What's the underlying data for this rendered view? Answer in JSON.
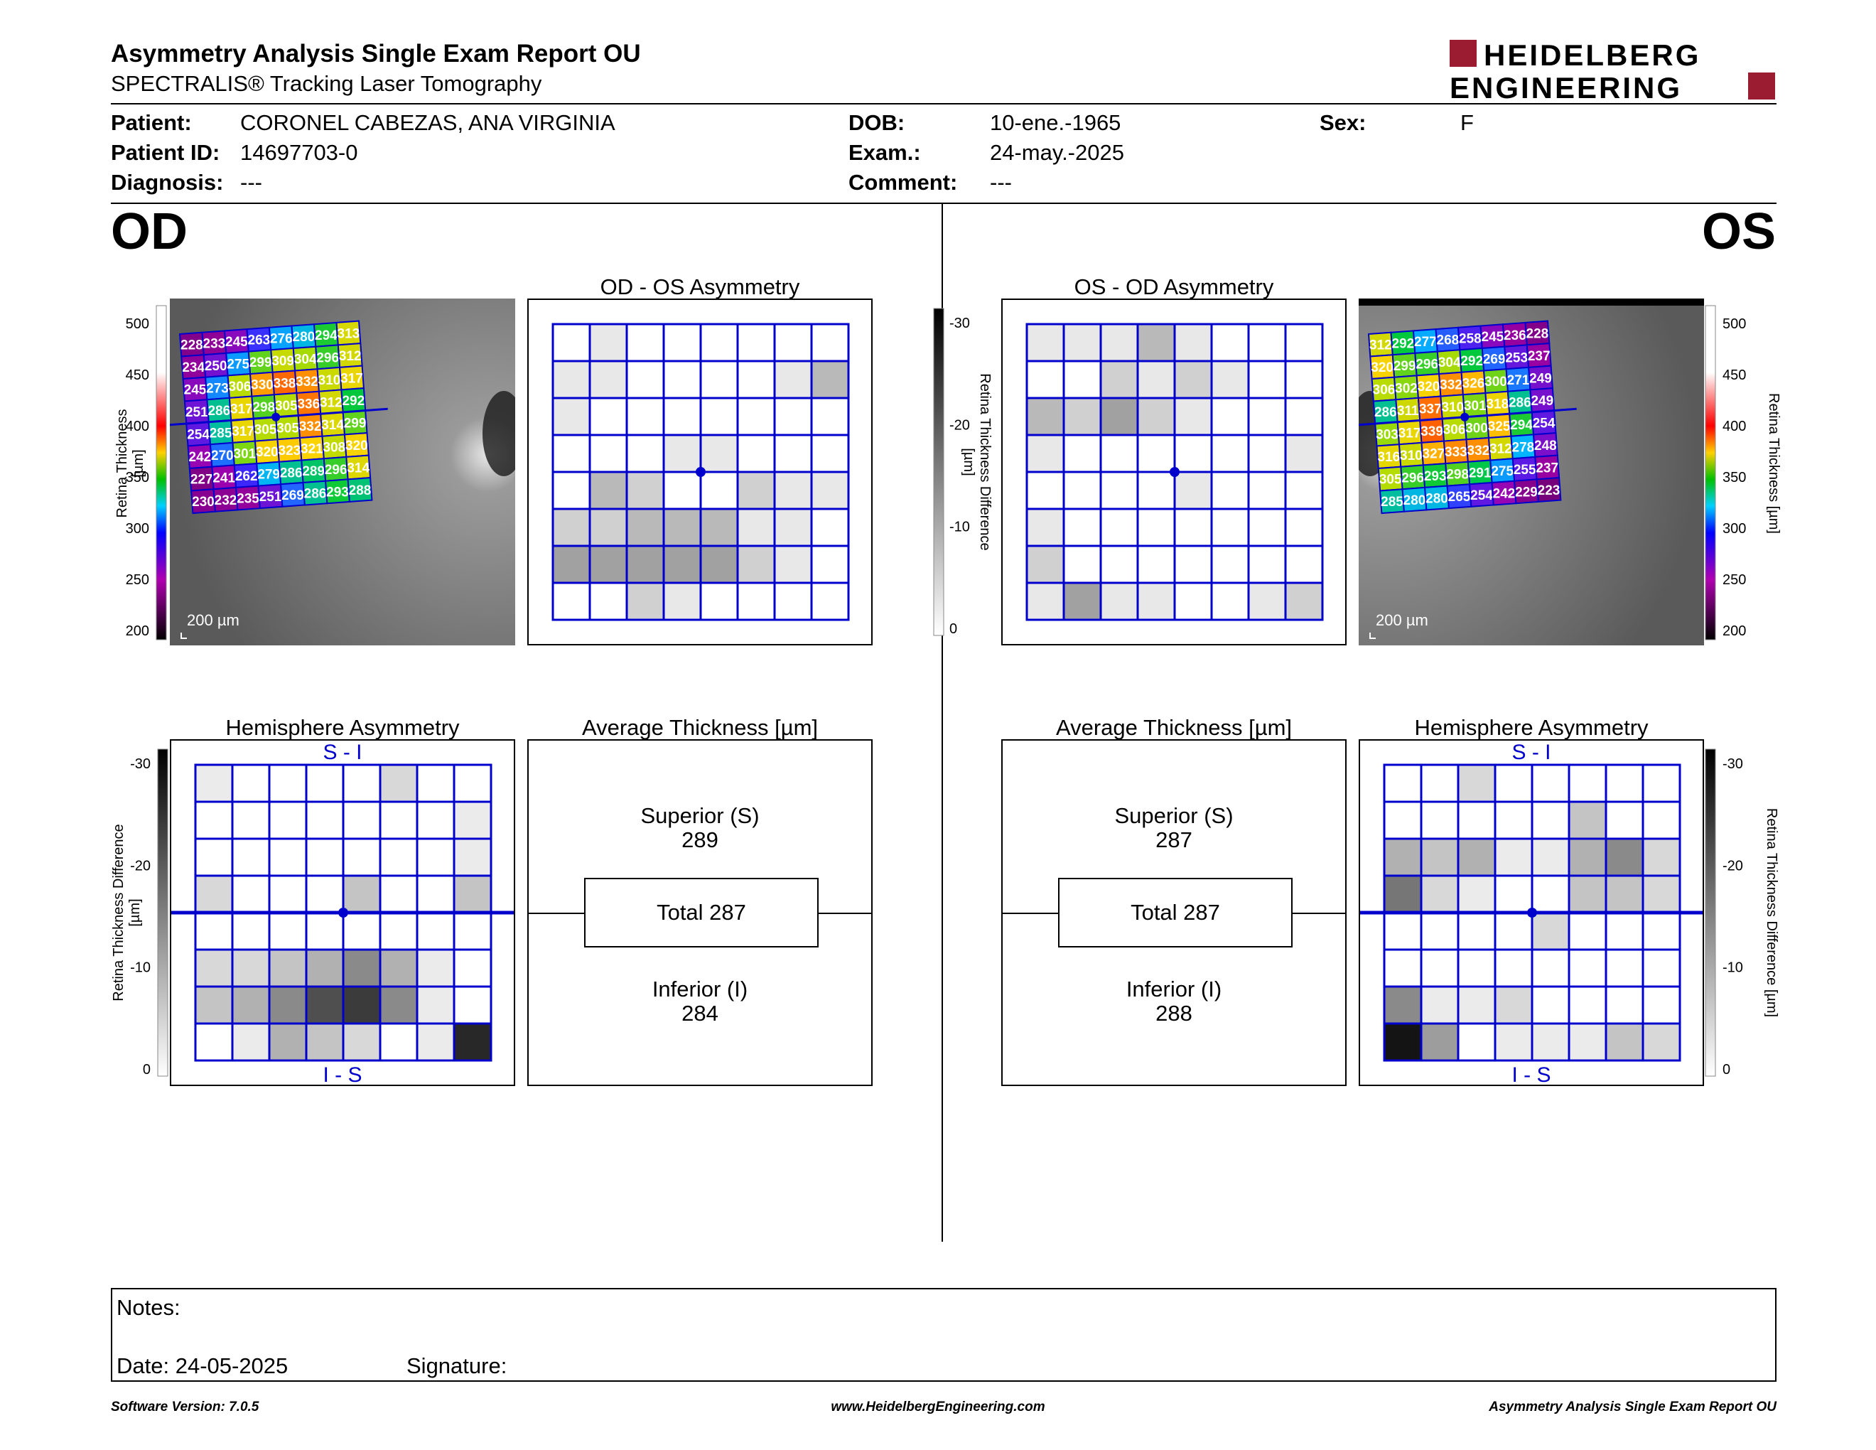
{
  "header": {
    "title": "Asymmetry Analysis Single Exam Report OU",
    "subtitle": "SPECTRALIS® Tracking Laser Tomography",
    "logo_line1": "HEIDELBERG",
    "logo_line2": "ENGINEERING",
    "brand_color": "#9b1b30"
  },
  "patient": {
    "patient_label": "Patient:",
    "patient_value": "CORONEL CABEZAS, ANA VIRGINIA",
    "id_label": "Patient ID:",
    "id_value": "14697703-0",
    "diagnosis_label": "Diagnosis:",
    "diagnosis_value": "---",
    "dob_label": "DOB:",
    "dob_value": "10-ene.-1965",
    "exam_label": "Exam.:",
    "exam_value": "24-may.-2025",
    "comment_label": "Comment:",
    "comment_value": "---",
    "sex_label": "Sex:",
    "sex_value": "F"
  },
  "od": {
    "label": "OD",
    "asym_title": "OD - OS Asymmetry",
    "hemi_title": "Hemisphere Asymmetry",
    "avg_title": "Average Thickness [µm]",
    "scale_label": "200 µm",
    "hemi_top": "S - I",
    "hemi_bottom": "I - S",
    "superior_label": "Superior (S)",
    "superior_value": "289",
    "total_label": "Total 287",
    "inferior_label": "Inferior (I)",
    "inferior_value": "284",
    "thickness_grid": [
      [
        228,
        233,
        245,
        263,
        276,
        280,
        294,
        313
      ],
      [
        234,
        250,
        275,
        299,
        309,
        304,
        296,
        312
      ],
      [
        245,
        273,
        306,
        330,
        338,
        332,
        310,
        317
      ],
      [
        251,
        286,
        317,
        298,
        305,
        336,
        312,
        292
      ],
      [
        254,
        285,
        317,
        305,
        305,
        332,
        314,
        299
      ],
      [
        242,
        270,
        301,
        320,
        323,
        321,
        308,
        320
      ],
      [
        227,
        241,
        262,
        279,
        286,
        289,
        296,
        314
      ],
      [
        230,
        232,
        235,
        251,
        269,
        286,
        293,
        288
      ]
    ],
    "asym_grid": [
      [
        0,
        1,
        0,
        0,
        0,
        0,
        0,
        0
      ],
      [
        1,
        1,
        0,
        0,
        0,
        0,
        1,
        3
      ],
      [
        1,
        0,
        0,
        0,
        0,
        0,
        0,
        0
      ],
      [
        0,
        0,
        0,
        1,
        1,
        0,
        0,
        0
      ],
      [
        0,
        3,
        2,
        0,
        0,
        2,
        1,
        1
      ],
      [
        2,
        2,
        3,
        3,
        3,
        1,
        1,
        0
      ],
      [
        4,
        4,
        4,
        4,
        4,
        2,
        1,
        0
      ],
      [
        0,
        0,
        2,
        1,
        0,
        0,
        0,
        0
      ]
    ],
    "hemi_grid": [
      [
        1,
        0,
        0,
        0,
        0,
        2,
        0,
        0
      ],
      [
        0,
        0,
        0,
        0,
        0,
        0,
        0,
        1
      ],
      [
        0,
        0,
        0,
        0,
        0,
        0,
        0,
        1
      ],
      [
        2,
        0,
        0,
        0,
        3,
        0,
        0,
        3
      ],
      [
        0,
        0,
        0,
        0,
        0,
        0,
        0,
        0
      ],
      [
        2,
        2,
        3,
        4,
        6,
        4,
        1,
        0
      ],
      [
        3,
        4,
        6,
        9,
        10,
        6,
        1,
        0
      ],
      [
        0,
        1,
        4,
        3,
        2,
        0,
        1,
        11
      ]
    ]
  },
  "os": {
    "label": "OS",
    "asym_title": "OS - OD Asymmetry",
    "hemi_title": "Hemisphere Asymmetry",
    "avg_title": "Average Thickness [µm]",
    "scale_label": "200 µm",
    "hemi_top": "S - I",
    "hemi_bottom": "I - S",
    "superior_label": "Superior (S)",
    "superior_value": "287",
    "total_label": "Total 287",
    "inferior_label": "Inferior (I)",
    "inferior_value": "288",
    "thickness_grid": [
      [
        312,
        292,
        277,
        268,
        258,
        245,
        236,
        228
      ],
      [
        320,
        299,
        296,
        304,
        292,
        269,
        253,
        237
      ],
      [
        306,
        302,
        320,
        332,
        326,
        300,
        271,
        249
      ],
      [
        286,
        311,
        337,
        310,
        301,
        318,
        286,
        249
      ],
      [
        303,
        317,
        339,
        306,
        300,
        325,
        294,
        254
      ],
      [
        316,
        310,
        327,
        333,
        332,
        312,
        278,
        248
      ],
      [
        305,
        296,
        293,
        298,
        291,
        275,
        255,
        237
      ],
      [
        285,
        280,
        280,
        265,
        254,
        242,
        229,
        223
      ]
    ],
    "asym_grid": [
      [
        1,
        1,
        1,
        3,
        1,
        0,
        0,
        0
      ],
      [
        0,
        0,
        2,
        1,
        2,
        1,
        0,
        0
      ],
      [
        3,
        2,
        4,
        2,
        1,
        0,
        0,
        0
      ],
      [
        1,
        0,
        0,
        0,
        0,
        0,
        0,
        1
      ],
      [
        0,
        0,
        0,
        0,
        1,
        0,
        0,
        0
      ],
      [
        1,
        0,
        0,
        0,
        0,
        0,
        0,
        0
      ],
      [
        2,
        0,
        0,
        0,
        0,
        0,
        0,
        0
      ],
      [
        1,
        4,
        1,
        1,
        0,
        0,
        1,
        2
      ]
    ],
    "hemi_grid": [
      [
        0,
        0,
        2,
        0,
        0,
        0,
        0,
        0
      ],
      [
        0,
        0,
        0,
        0,
        0,
        3,
        0,
        0
      ],
      [
        4,
        3,
        4,
        1,
        1,
        4,
        6,
        2
      ],
      [
        7,
        2,
        1,
        0,
        0,
        3,
        3,
        2
      ],
      [
        0,
        0,
        0,
        0,
        2,
        0,
        0,
        0
      ],
      [
        0,
        0,
        0,
        0,
        0,
        0,
        0,
        0
      ],
      [
        6,
        1,
        1,
        2,
        0,
        0,
        0,
        0
      ],
      [
        12,
        5,
        0,
        1,
        1,
        1,
        3,
        2
      ]
    ]
  },
  "colorbar": {
    "thickness_ticks": [
      "500",
      "450",
      "400",
      "350",
      "300",
      "250",
      "200"
    ],
    "thickness_label": "Retina Thickness [µm]",
    "diff_ticks": [
      "-30",
      "-20",
      "-10",
      "0"
    ],
    "diff_label": "Retina Thickness Difference [µm]"
  },
  "notes": {
    "notes_label": "Notes:",
    "date_label": "Date: 24-05-2025",
    "signature_label": "Signature:"
  },
  "footer": {
    "software": "Software Version: 7.0.5",
    "website": "www.HeidelbergEngineering.com",
    "report": "Asymmetry Analysis Single Exam Report OU"
  },
  "colors": {
    "grid_blue": "#0000cc"
  }
}
